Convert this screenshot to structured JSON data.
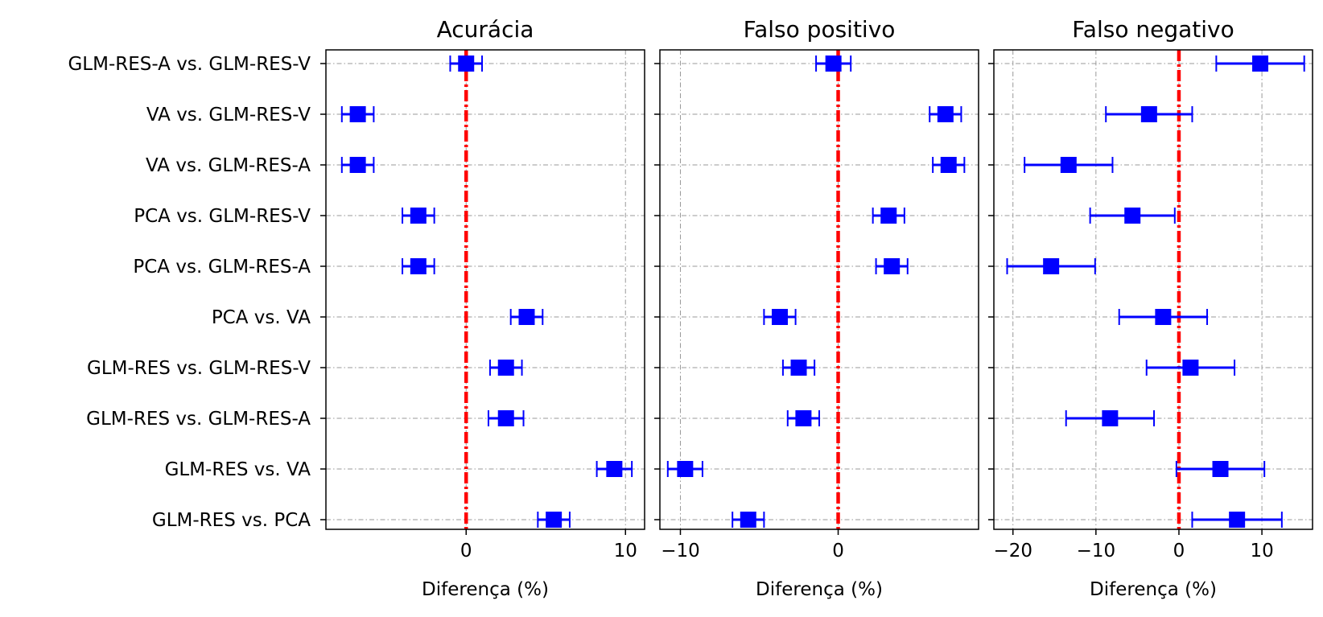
{
  "chart_data": {
    "type": "errorbar",
    "categories": [
      "GLM-RES-A vs. GLM-RES-V",
      "VA vs. GLM-RES-V",
      "VA vs. GLM-RES-A",
      "PCA vs. GLM-RES-V",
      "PCA vs. GLM-RES-A",
      "PCA vs. VA",
      "GLM-RES vs. GLM-RES-V",
      "GLM-RES vs. GLM-RES-A",
      "GLM-RES vs. VA",
      "GLM-RES vs. PCA"
    ],
    "reference_line": 0,
    "colors": {
      "marker": "#0000ff",
      "reference": "#ff0000",
      "grid": "#999999"
    },
    "grid": true,
    "panels": [
      {
        "title": "Acurácia",
        "xlabel": "Diferença (%)",
        "xlim": [
          -8.8,
          11.2
        ],
        "xticks": [
          0,
          10
        ],
        "xtick_labels": [
          "0",
          "10"
        ],
        "values": [
          0.0,
          -6.8,
          -6.8,
          -3.0,
          -3.0,
          3.8,
          2.5,
          2.5,
          9.3,
          5.5
        ],
        "err": [
          1.0,
          1.0,
          1.0,
          1.0,
          1.0,
          1.0,
          1.0,
          1.1,
          1.1,
          1.0
        ]
      },
      {
        "title": "Falso positivo",
        "xlabel": "Diferença (%)",
        "xlim": [
          -11.3,
          8.9
        ],
        "xticks": [
          -10,
          0
        ],
        "xtick_labels": [
          "−10",
          "0"
        ],
        "values": [
          -0.3,
          6.8,
          7.0,
          3.2,
          3.4,
          -3.7,
          -2.5,
          -2.2,
          -9.7,
          -5.7
        ],
        "err": [
          1.1,
          1.0,
          1.0,
          1.0,
          1.0,
          1.0,
          1.0,
          1.0,
          1.1,
          1.0
        ]
      },
      {
        "title": "Falso negativo",
        "xlabel": "Diferença (%)",
        "xlim": [
          -22.3,
          16.1
        ],
        "xticks": [
          -20,
          -10,
          0,
          10
        ],
        "xtick_labels": [
          "−20",
          "−10",
          "0",
          "10"
        ],
        "values": [
          9.8,
          -3.6,
          -13.3,
          -5.6,
          -15.4,
          -1.9,
          1.4,
          -8.3,
          5.0,
          7.0
        ],
        "err": [
          5.3,
          5.2,
          5.3,
          5.1,
          5.3,
          5.3,
          5.3,
          5.3,
          5.3,
          5.4
        ]
      }
    ]
  }
}
